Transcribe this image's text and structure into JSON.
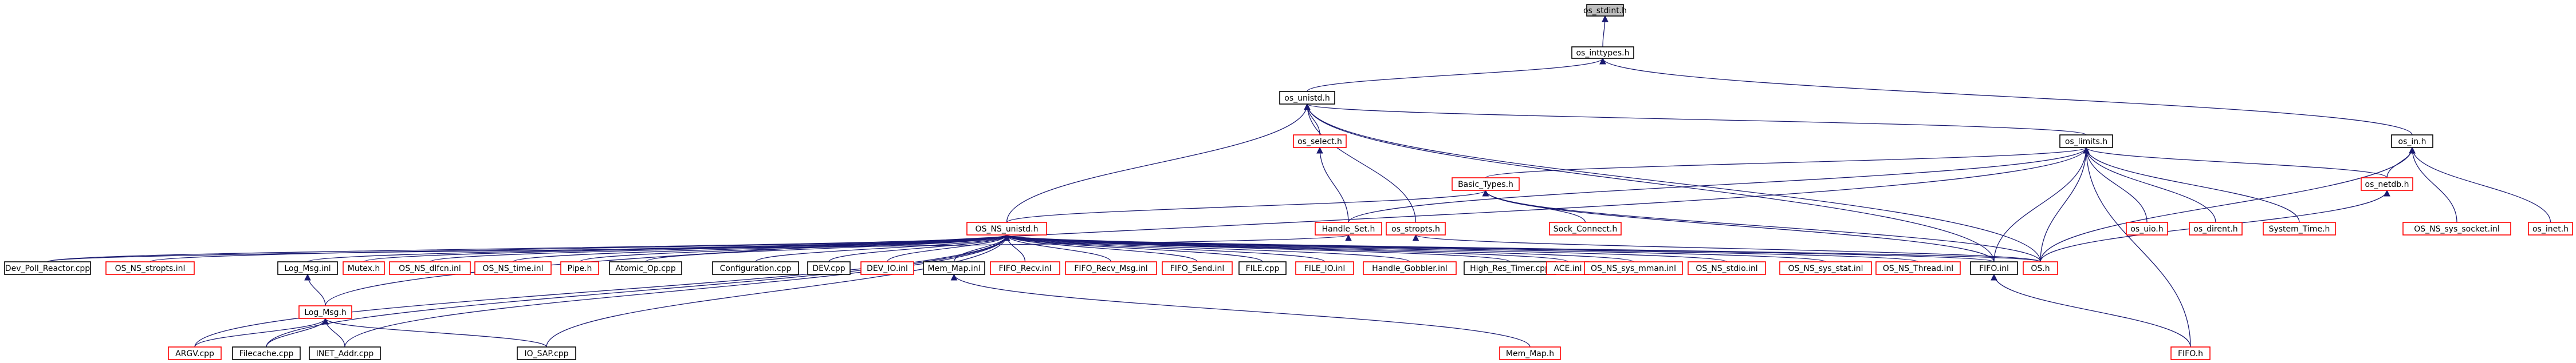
{
  "title": "",
  "colors": {
    "edge": "#191970",
    "linked_border": "#000000",
    "missing_border": "#ff0000",
    "root_fill": "#bfbfbf",
    "node_fill": "#ffffff",
    "text": "#000000"
  },
  "nodes": [
    {
      "id": "os_stdint",
      "label": "os_stdint.h",
      "kind": "root"
    },
    {
      "id": "os_inttypes",
      "label": "os_inttypes.h",
      "kind": "linked"
    },
    {
      "id": "os_unistd",
      "label": "os_unistd.h",
      "kind": "linked"
    },
    {
      "id": "os_in",
      "label": "os_in.h",
      "kind": "linked"
    },
    {
      "id": "os_select",
      "label": "os_select.h",
      "kind": "missing"
    },
    {
      "id": "os_limits",
      "label": "os_limits.h",
      "kind": "linked"
    },
    {
      "id": "handle_set",
      "label": "Handle_Set.h",
      "kind": "missing"
    },
    {
      "id": "basic_types",
      "label": "Basic_Types.h",
      "kind": "missing"
    },
    {
      "id": "os_uio",
      "label": "os_uio.h",
      "kind": "missing"
    },
    {
      "id": "os_dirent",
      "label": "os_dirent.h",
      "kind": "missing"
    },
    {
      "id": "system_time",
      "label": "System_Time.h",
      "kind": "missing"
    },
    {
      "id": "os_netdb",
      "label": "os_netdb.h",
      "kind": "missing"
    },
    {
      "id": "os_ns_sys_socket",
      "label": "OS_NS_sys_socket.inl",
      "kind": "missing"
    },
    {
      "id": "os_inet",
      "label": "os_inet.h",
      "kind": "missing"
    },
    {
      "id": "os_ns_unistd",
      "label": "OS_NS_unistd.h",
      "kind": "missing"
    },
    {
      "id": "sock_connect",
      "label": "Sock_Connect.h",
      "kind": "missing"
    },
    {
      "id": "os_stropts",
      "label": "os_stropts.h",
      "kind": "missing"
    },
    {
      "id": "dev_poll_reactor",
      "label": "Dev_Poll_Reactor.cpp",
      "kind": "linked"
    },
    {
      "id": "os_ns_stropts",
      "label": "OS_NS_stropts.inl",
      "kind": "missing"
    },
    {
      "id": "log_msg_inl",
      "label": "Log_Msg.inl",
      "kind": "linked"
    },
    {
      "id": "mutex",
      "label": "Mutex.h",
      "kind": "missing"
    },
    {
      "id": "os_ns_dlfcn",
      "label": "OS_NS_dlfcn.inl",
      "kind": "missing"
    },
    {
      "id": "os_ns_time",
      "label": "OS_NS_time.inl",
      "kind": "missing"
    },
    {
      "id": "pipe",
      "label": "Pipe.h",
      "kind": "missing"
    },
    {
      "id": "atomic_op",
      "label": "Atomic_Op.cpp",
      "kind": "linked"
    },
    {
      "id": "configuration",
      "label": "Configuration.cpp",
      "kind": "linked"
    },
    {
      "id": "dev_cpp",
      "label": "DEV.cpp",
      "kind": "linked"
    },
    {
      "id": "dev_io",
      "label": "DEV_IO.inl",
      "kind": "missing"
    },
    {
      "id": "mem_map_inl",
      "label": "Mem_Map.inl",
      "kind": "linked"
    },
    {
      "id": "fifo_recv",
      "label": "FIFO_Recv.inl",
      "kind": "missing"
    },
    {
      "id": "fifo_recv_msg",
      "label": "FIFO_Recv_Msg.inl",
      "kind": "missing"
    },
    {
      "id": "fifo_send",
      "label": "FIFO_Send.inl",
      "kind": "missing"
    },
    {
      "id": "file_cpp",
      "label": "FILE.cpp",
      "kind": "linked"
    },
    {
      "id": "file_io",
      "label": "FILE_IO.inl",
      "kind": "missing"
    },
    {
      "id": "handle_gobbler",
      "label": "Handle_Gobbler.inl",
      "kind": "missing"
    },
    {
      "id": "high_res_timer",
      "label": "High_Res_Timer.cpp",
      "kind": "linked"
    },
    {
      "id": "ace_inl",
      "label": "ACE.inl",
      "kind": "missing"
    },
    {
      "id": "os_ns_sys_mman",
      "label": "OS_NS_sys_mman.inl",
      "kind": "missing"
    },
    {
      "id": "os_ns_stdio",
      "label": "OS_NS_stdio.inl",
      "kind": "missing"
    },
    {
      "id": "os_ns_sys_stat",
      "label": "OS_NS_sys_stat.inl",
      "kind": "missing"
    },
    {
      "id": "os_ns_thread",
      "label": "OS_NS_Thread.inl",
      "kind": "missing"
    },
    {
      "id": "fifo_inl",
      "label": "FIFO.inl",
      "kind": "linked"
    },
    {
      "id": "os_h",
      "label": "OS.h",
      "kind": "missing"
    },
    {
      "id": "log_msg_h",
      "label": "Log_Msg.h",
      "kind": "missing"
    },
    {
      "id": "mem_map_h",
      "label": "Mem_Map.h",
      "kind": "missing"
    },
    {
      "id": "fifo_h",
      "label": "FIFO.h",
      "kind": "missing"
    },
    {
      "id": "argv",
      "label": "ARGV.cpp",
      "kind": "missing"
    },
    {
      "id": "filecache",
      "label": "Filecache.cpp",
      "kind": "linked"
    },
    {
      "id": "inet_addr",
      "label": "INET_Addr.cpp",
      "kind": "linked"
    },
    {
      "id": "io_sap",
      "label": "IO_SAP.cpp",
      "kind": "linked"
    }
  ],
  "edges": [
    [
      "os_inttypes",
      "os_stdint"
    ],
    [
      "os_unistd",
      "os_inttypes"
    ],
    [
      "os_in",
      "os_inttypes"
    ],
    [
      "os_select",
      "os_unistd"
    ],
    [
      "os_limits",
      "os_unistd"
    ],
    [
      "os_ns_unistd",
      "os_unistd"
    ],
    [
      "os_stropts",
      "os_unistd"
    ],
    [
      "fifo_inl",
      "os_unistd"
    ],
    [
      "os_h",
      "os_unistd"
    ],
    [
      "handle_set",
      "os_select"
    ],
    [
      "handle_set",
      "os_limits"
    ],
    [
      "basic_types",
      "os_limits"
    ],
    [
      "os_uio",
      "os_limits"
    ],
    [
      "os_dirent",
      "os_limits"
    ],
    [
      "system_time",
      "os_limits"
    ],
    [
      "os_netdb",
      "os_limits"
    ],
    [
      "fifo_inl",
      "os_limits"
    ],
    [
      "os_h",
      "os_limits"
    ],
    [
      "fifo_h",
      "os_limits"
    ],
    [
      "log_msg_h",
      "os_limits"
    ],
    [
      "os_netdb",
      "os_in"
    ],
    [
      "os_ns_sys_socket",
      "os_in"
    ],
    [
      "os_inet",
      "os_in"
    ],
    [
      "os_h",
      "os_in"
    ],
    [
      "sock_connect",
      "basic_types"
    ],
    [
      "os_h",
      "basic_types"
    ],
    [
      "fifo_inl",
      "basic_types"
    ],
    [
      "os_ns_unistd",
      "basic_types"
    ],
    [
      "dev_poll_reactor",
      "handle_set"
    ],
    [
      "os_h",
      "os_netdb"
    ],
    [
      "os_h",
      "os_stropts"
    ],
    [
      "dev_poll_reactor",
      "os_ns_unistd"
    ],
    [
      "os_ns_stropts",
      "os_ns_unistd"
    ],
    [
      "log_msg_inl",
      "os_ns_unistd"
    ],
    [
      "mutex",
      "os_ns_unistd"
    ],
    [
      "os_ns_dlfcn",
      "os_ns_unistd"
    ],
    [
      "os_ns_time",
      "os_ns_unistd"
    ],
    [
      "pipe",
      "os_ns_unistd"
    ],
    [
      "atomic_op",
      "os_ns_unistd"
    ],
    [
      "configuration",
      "os_ns_unistd"
    ],
    [
      "dev_cpp",
      "os_ns_unistd"
    ],
    [
      "dev_io",
      "os_ns_unistd"
    ],
    [
      "mem_map_inl",
      "os_ns_unistd"
    ],
    [
      "fifo_recv",
      "os_ns_unistd"
    ],
    [
      "fifo_recv_msg",
      "os_ns_unistd"
    ],
    [
      "fifo_send",
      "os_ns_unistd"
    ],
    [
      "file_cpp",
      "os_ns_unistd"
    ],
    [
      "file_io",
      "os_ns_unistd"
    ],
    [
      "handle_gobbler",
      "os_ns_unistd"
    ],
    [
      "high_res_timer",
      "os_ns_unistd"
    ],
    [
      "ace_inl",
      "os_ns_unistd"
    ],
    [
      "os_ns_sys_mman",
      "os_ns_unistd"
    ],
    [
      "os_ns_stdio",
      "os_ns_unistd"
    ],
    [
      "os_ns_sys_stat",
      "os_ns_unistd"
    ],
    [
      "os_ns_thread",
      "os_ns_unistd"
    ],
    [
      "fifo_inl",
      "os_ns_unistd"
    ],
    [
      "os_h",
      "os_ns_unistd"
    ],
    [
      "argv",
      "os_ns_unistd"
    ],
    [
      "filecache",
      "os_ns_unistd"
    ],
    [
      "inet_addr",
      "os_ns_unistd"
    ],
    [
      "io_sap",
      "os_ns_unistd"
    ],
    [
      "log_msg_h",
      "log_msg_inl"
    ],
    [
      "mem_map_h",
      "mem_map_inl"
    ],
    [
      "fifo_h",
      "fifo_inl"
    ],
    [
      "argv",
      "log_msg_h"
    ],
    [
      "filecache",
      "log_msg_h"
    ],
    [
      "inet_addr",
      "log_msg_h"
    ],
    [
      "io_sap",
      "log_msg_h"
    ]
  ]
}
